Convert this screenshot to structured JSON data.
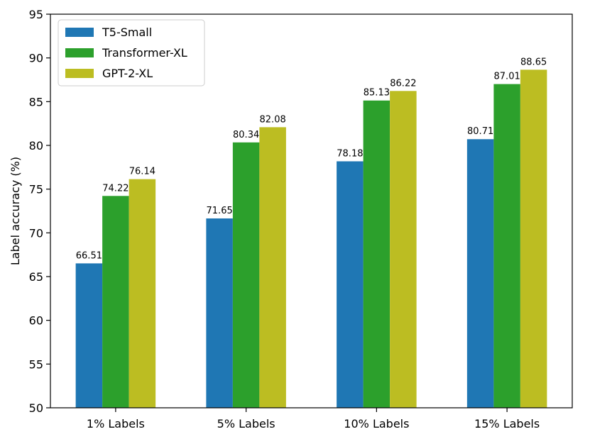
{
  "chart_data": {
    "type": "bar",
    "title": "",
    "xlabel": "",
    "ylabel": "Label accuracy (%)",
    "ylim": [
      50,
      95
    ],
    "yticks": [
      50,
      55,
      60,
      65,
      70,
      75,
      80,
      85,
      90,
      95
    ],
    "grid": false,
    "legend_position": "top-left",
    "categories": [
      "1% Labels",
      "5% Labels",
      "10% Labels",
      "15% Labels"
    ],
    "series": [
      {
        "name": "T5-Small",
        "color": "#1f77b4",
        "values": [
          66.51,
          71.65,
          78.18,
          80.71
        ],
        "labels": [
          "66.51",
          "71.65",
          "78.18",
          "80.71"
        ]
      },
      {
        "name": "Transformer-XL",
        "color": "#2ca02c",
        "values": [
          74.22,
          80.34,
          85.13,
          87.01
        ],
        "labels": [
          "74.22",
          "80.34",
          "85.13",
          "87.01"
        ]
      },
      {
        "name": "GPT-2-XL",
        "color": "#bcbd22",
        "values": [
          76.14,
          82.08,
          86.22,
          88.65
        ],
        "labels": [
          "76.14",
          "82.08",
          "86.22",
          "88.65"
        ]
      }
    ]
  }
}
